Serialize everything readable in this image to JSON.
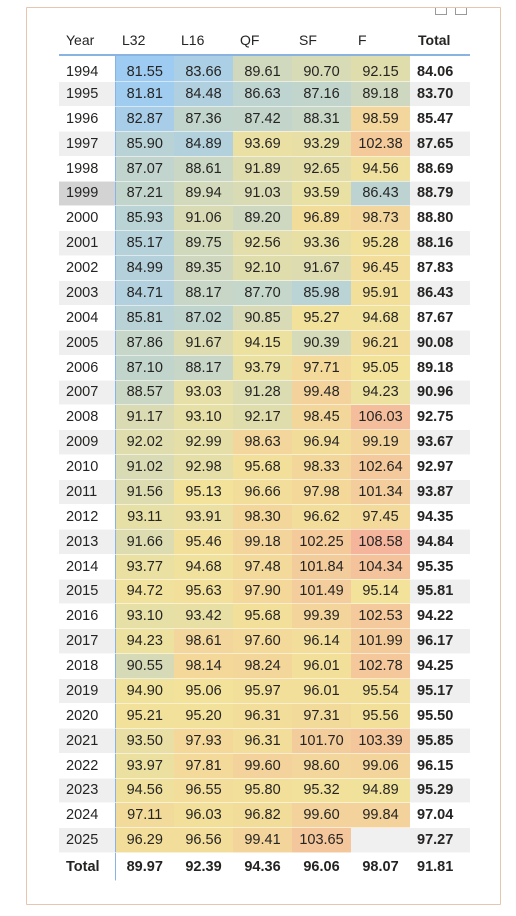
{
  "columns": [
    "Year",
    "L32",
    "L16",
    "QF",
    "SF",
    "F",
    "Total"
  ],
  "rows": [
    {
      "year": "1994",
      "vals": [
        "81.55",
        "83.66",
        "89.61",
        "90.70",
        "92.15"
      ],
      "total": "84.06"
    },
    {
      "year": "1995",
      "vals": [
        "81.81",
        "84.48",
        "86.63",
        "87.16",
        "89.18"
      ],
      "total": "83.70"
    },
    {
      "year": "1996",
      "vals": [
        "82.87",
        "87.36",
        "87.42",
        "88.31",
        "98.59"
      ],
      "total": "85.47"
    },
    {
      "year": "1997",
      "vals": [
        "85.90",
        "84.89",
        "93.69",
        "93.29",
        "102.38"
      ],
      "total": "87.65"
    },
    {
      "year": "1998",
      "vals": [
        "87.07",
        "88.61",
        "91.89",
        "92.65",
        "94.56"
      ],
      "total": "88.69"
    },
    {
      "year": "1999",
      "vals": [
        "87.21",
        "89.94",
        "91.03",
        "93.59",
        "86.43"
      ],
      "total": "88.79"
    },
    {
      "year": "2000",
      "vals": [
        "85.93",
        "91.06",
        "89.20",
        "96.89",
        "98.73"
      ],
      "total": "88.80"
    },
    {
      "year": "2001",
      "vals": [
        "85.17",
        "89.75",
        "92.56",
        "93.36",
        "95.28"
      ],
      "total": "88.16"
    },
    {
      "year": "2002",
      "vals": [
        "84.99",
        "89.35",
        "92.10",
        "91.67",
        "96.45"
      ],
      "total": "87.83"
    },
    {
      "year": "2003",
      "vals": [
        "84.71",
        "88.17",
        "87.70",
        "85.98",
        "95.91"
      ],
      "total": "86.43"
    },
    {
      "year": "2004",
      "vals": [
        "85.81",
        "87.02",
        "90.85",
        "95.27",
        "94.68"
      ],
      "total": "87.67"
    },
    {
      "year": "2005",
      "vals": [
        "87.86",
        "91.67",
        "94.15",
        "90.39",
        "96.21"
      ],
      "total": "90.08"
    },
    {
      "year": "2006",
      "vals": [
        "87.10",
        "88.17",
        "93.79",
        "97.71",
        "95.05"
      ],
      "total": "89.18"
    },
    {
      "year": "2007",
      "vals": [
        "88.57",
        "93.03",
        "91.28",
        "99.48",
        "94.23"
      ],
      "total": "90.96"
    },
    {
      "year": "2008",
      "vals": [
        "91.17",
        "93.10",
        "92.17",
        "98.45",
        "106.03"
      ],
      "total": "92.75"
    },
    {
      "year": "2009",
      "vals": [
        "92.02",
        "92.99",
        "98.63",
        "96.94",
        "99.19"
      ],
      "total": "93.67"
    },
    {
      "year": "2010",
      "vals": [
        "91.02",
        "92.98",
        "95.68",
        "98.33",
        "102.64"
      ],
      "total": "92.97"
    },
    {
      "year": "2011",
      "vals": [
        "91.56",
        "95.13",
        "96.66",
        "97.98",
        "101.34"
      ],
      "total": "93.87"
    },
    {
      "year": "2012",
      "vals": [
        "93.11",
        "93.91",
        "98.30",
        "96.62",
        "97.45"
      ],
      "total": "94.35"
    },
    {
      "year": "2013",
      "vals": [
        "91.66",
        "95.46",
        "99.18",
        "102.25",
        "108.58"
      ],
      "total": "94.84"
    },
    {
      "year": "2014",
      "vals": [
        "93.77",
        "94.68",
        "97.48",
        "101.84",
        "104.34"
      ],
      "total": "95.35"
    },
    {
      "year": "2015",
      "vals": [
        "94.72",
        "95.63",
        "97.90",
        "101.49",
        "95.14"
      ],
      "total": "95.81"
    },
    {
      "year": "2016",
      "vals": [
        "93.10",
        "93.42",
        "95.68",
        "99.39",
        "102.53"
      ],
      "total": "94.22"
    },
    {
      "year": "2017",
      "vals": [
        "94.23",
        "98.61",
        "97.60",
        "96.14",
        "101.99"
      ],
      "total": "96.17"
    },
    {
      "year": "2018",
      "vals": [
        "90.55",
        "98.14",
        "98.24",
        "96.01",
        "102.78"
      ],
      "total": "94.25"
    },
    {
      "year": "2019",
      "vals": [
        "94.90",
        "95.06",
        "95.97",
        "96.01",
        "95.54"
      ],
      "total": "95.17"
    },
    {
      "year": "2020",
      "vals": [
        "95.21",
        "95.20",
        "96.31",
        "97.31",
        "95.56"
      ],
      "total": "95.50"
    },
    {
      "year": "2021",
      "vals": [
        "93.50",
        "97.93",
        "96.31",
        "101.70",
        "103.39"
      ],
      "total": "95.85"
    },
    {
      "year": "2022",
      "vals": [
        "93.97",
        "97.81",
        "99.60",
        "98.60",
        "99.06"
      ],
      "total": "96.15"
    },
    {
      "year": "2023",
      "vals": [
        "94.56",
        "96.55",
        "95.80",
        "95.32",
        "94.89"
      ],
      "total": "95.29"
    },
    {
      "year": "2024",
      "vals": [
        "97.11",
        "96.03",
        "96.82",
        "99.60",
        "99.84"
      ],
      "total": "97.04"
    },
    {
      "year": "2025",
      "vals": [
        "96.29",
        "96.56",
        "99.41",
        "103.65",
        ""
      ],
      "total": "97.27"
    }
  ],
  "totals": {
    "label": "Total",
    "vals": [
      "89.97",
      "92.39",
      "94.36",
      "96.06",
      "98.07"
    ],
    "total": "91.81"
  },
  "selected_year": "1999",
  "colors": {
    "low": "#9ecbf2",
    "mid": "#f2e29a",
    "high": "#f5b49c",
    "accent": "#8ab4df",
    "frame": "#e8c6ad"
  }
}
